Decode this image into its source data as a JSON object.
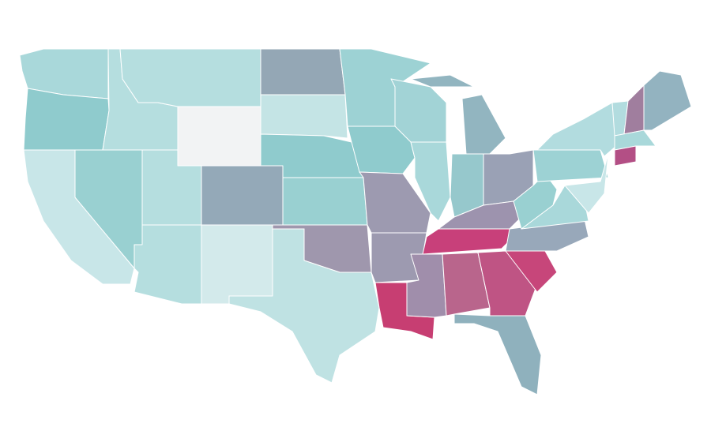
{
  "map": {
    "regions": [
      {
        "color": "#a9d8da"
      },
      {
        "color": "#8fcbcd"
      },
      {
        "color": "#c8e6e8"
      },
      {
        "color": "#99d0d1"
      },
      {
        "color": "#b5dedf"
      },
      {
        "color": "#b5dedf"
      },
      {
        "color": "#f2f3f4"
      },
      {
        "color": "#b5dedf"
      },
      {
        "color": "#b5dedf"
      },
      {
        "color": "#94a9b8"
      },
      {
        "color": "#d3eaeb"
      },
      {
        "color": "#94a7b5"
      },
      {
        "color": "#c4e4e5"
      },
      {
        "color": "#8fcbcd"
      },
      {
        "color": "#99d0d1"
      },
      {
        "color": "#9f97ad"
      },
      {
        "color": "#bfe2e3"
      },
      {
        "color": "#9dd2d4"
      },
      {
        "color": "#8fcbcd"
      },
      {
        "color": "#9d9ab0"
      },
      {
        "color": "#9d9ab0"
      },
      {
        "color": "#c73e72"
      },
      {
        "color": "#a2d3d6"
      },
      {
        "color": "#a9d8da"
      },
      {
        "color": "#92b5c0"
      },
      {
        "color": "#92b5c0"
      },
      {
        "color": "#96c8cc"
      },
      {
        "color": "#9aa1b5"
      },
      {
        "color": "#9d93ae"
      },
      {
        "color": "#c8407a"
      },
      {
        "color": "#a08eab"
      },
      {
        "color": "#b9658c"
      },
      {
        "color": "#bf5484"
      },
      {
        "color": "#c7467a"
      },
      {
        "color": "#8fb1bd"
      },
      {
        "color": "#98a8ba"
      },
      {
        "color": "#a9d8da"
      },
      {
        "color": "#99d0d1"
      },
      {
        "color": "#9dd2d4"
      },
      {
        "color": "#b2dcdf"
      },
      {
        "color": "#c8e6e8"
      },
      {
        "color": "#b2dcdf"
      },
      {
        "color": "#a07e9e"
      },
      {
        "color": "#93b3c0"
      },
      {
        "color": "#a9d8da"
      },
      {
        "color": "#b34f85"
      }
    ]
  }
}
